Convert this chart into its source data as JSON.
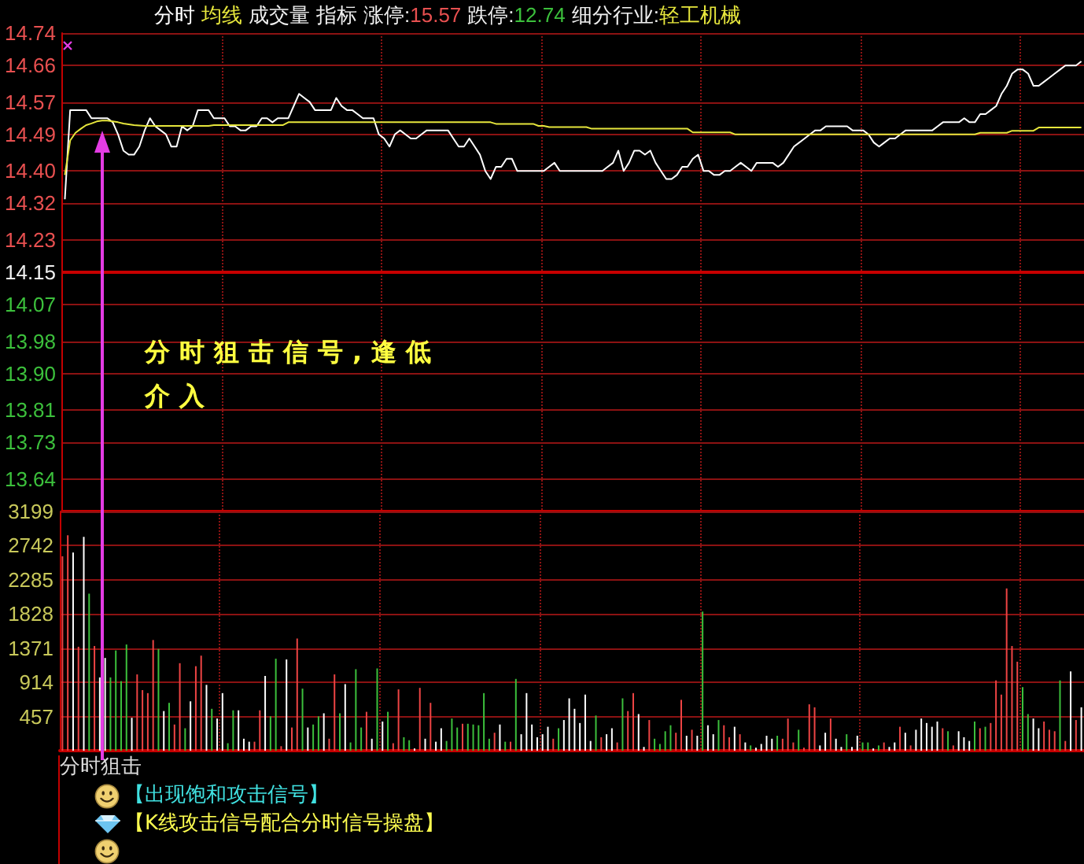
{
  "chart_data": [
    {
      "type": "line",
      "legend": "top left",
      "grid": true,
      "tick_labels": "y",
      "categories": [
        null,
        null,
        null,
        null,
        null,
        null,
        null,
        null,
        null,
        null,
        null,
        null,
        null,
        null,
        null,
        null,
        null,
        null,
        null,
        null,
        null,
        null,
        null,
        null,
        null,
        null,
        null,
        null,
        null,
        null,
        null,
        null,
        null,
        null,
        null,
        null,
        null,
        null,
        null,
        null,
        null,
        null,
        null,
        null,
        null,
        null,
        null,
        null,
        null,
        null,
        null,
        null,
        null,
        null,
        null,
        null,
        null,
        null,
        null,
        null,
        null,
        null,
        null,
        null,
        null,
        null,
        null,
        null,
        null,
        null,
        null,
        null,
        null,
        null,
        null,
        null,
        null,
        null,
        null,
        null,
        null,
        null,
        null,
        null,
        null,
        null,
        null,
        null,
        null,
        null,
        null,
        null,
        null,
        null,
        null,
        null,
        null,
        null,
        null,
        null,
        null,
        null,
        null,
        null,
        null,
        null,
        null,
        null,
        null,
        null,
        null,
        null,
        null,
        null,
        null,
        null,
        null,
        null,
        null,
        null,
        null,
        null,
        null,
        null,
        null,
        null,
        null,
        null,
        null,
        null,
        null,
        null,
        null,
        null,
        null,
        null,
        null,
        null,
        null,
        null,
        null,
        null,
        null,
        null,
        null,
        null,
        null,
        null,
        null,
        null,
        null,
        null,
        null,
        null,
        null,
        null,
        null,
        null,
        null,
        null,
        null,
        null,
        null,
        null,
        null,
        null,
        null,
        null,
        null,
        null,
        null,
        null,
        null,
        null,
        null,
        null,
        null,
        null,
        null,
        null,
        null,
        null,
        null,
        null,
        null,
        null,
        null,
        null,
        null,
        null,
        null,
        null
      ],
      "series": [
        {
          "name": "分时",
          "color": "#ffffff",
          "values": [
            14.33,
            14.55,
            14.55,
            14.55,
            14.55,
            14.53,
            14.53,
            14.53,
            14.53,
            14.52,
            14.49,
            14.45,
            14.44,
            14.44,
            14.46,
            14.5,
            14.53,
            14.51,
            14.5,
            14.49,
            14.46,
            14.46,
            14.51,
            14.5,
            14.51,
            14.55,
            14.55,
            14.55,
            14.53,
            14.53,
            14.53,
            14.51,
            14.51,
            14.5,
            14.5,
            14.51,
            14.51,
            14.53,
            14.53,
            14.52,
            14.53,
            14.53,
            14.53,
            14.56,
            14.59,
            14.58,
            14.57,
            14.55,
            14.55,
            14.55,
            14.55,
            14.58,
            14.56,
            14.55,
            14.55,
            14.54,
            14.53,
            14.53,
            14.53,
            14.49,
            14.48,
            14.46,
            14.49,
            14.5,
            14.49,
            14.48,
            14.48,
            14.49,
            14.5,
            14.5,
            14.5,
            14.5,
            14.5,
            14.48,
            14.46,
            14.46,
            14.48,
            14.46,
            14.44,
            14.4,
            14.38,
            14.41,
            14.41,
            14.43,
            14.43,
            14.4,
            14.4,
            14.4,
            14.4,
            14.4,
            14.4,
            14.41,
            14.42,
            14.4,
            14.4,
            14.4,
            14.4,
            14.4,
            14.4,
            14.4,
            14.4,
            14.4,
            14.41,
            14.42,
            14.45,
            14.4,
            14.42,
            14.45,
            14.45,
            14.44,
            14.45,
            14.42,
            14.4,
            14.38,
            14.38,
            14.39,
            14.41,
            14.41,
            14.43,
            14.44,
            14.4,
            14.4,
            14.39,
            14.39,
            14.4,
            14.4,
            14.41,
            14.42,
            14.41,
            14.4,
            14.42,
            14.42,
            14.42,
            14.42,
            14.41,
            14.42,
            14.44,
            14.46,
            14.47,
            14.48,
            14.49,
            14.5,
            14.5,
            14.51,
            14.51,
            14.51,
            14.51,
            14.51,
            14.5,
            14.5,
            14.5,
            14.49,
            14.47,
            14.46,
            14.47,
            14.48,
            14.48,
            14.49,
            14.5,
            14.5,
            14.5,
            14.5,
            14.5,
            14.5,
            14.51,
            14.52,
            14.52,
            14.52,
            14.52,
            14.53,
            14.52,
            14.52,
            14.54,
            14.54,
            14.55,
            14.56,
            14.59,
            14.61,
            14.64,
            14.65,
            14.65,
            14.64,
            14.61,
            14.61,
            14.62,
            14.63,
            14.64,
            14.65,
            14.66,
            14.66,
            14.66,
            14.67
          ]
        },
        {
          "name": "均线",
          "color": "#e6e63c",
          "values": [
            14.39,
            14.475,
            14.494,
            14.504,
            14.513,
            14.517,
            14.522,
            14.524,
            14.524,
            14.522,
            14.52,
            14.517,
            14.515,
            14.513,
            14.512,
            14.511,
            14.511,
            14.511,
            14.511,
            14.511,
            14.511,
            14.511,
            14.511,
            14.511,
            14.511,
            14.511,
            14.511,
            14.511,
            14.513,
            14.513,
            14.513,
            14.513,
            14.513,
            14.513,
            14.513,
            14.513,
            14.513,
            14.513,
            14.513,
            14.513,
            14.513,
            14.513,
            14.52,
            14.52,
            14.52,
            14.52,
            14.52,
            14.52,
            14.52,
            14.52,
            14.52,
            14.52,
            14.52,
            14.52,
            14.52,
            14.52,
            14.52,
            14.52,
            14.52,
            14.52,
            14.52,
            14.52,
            14.52,
            14.52,
            14.52,
            14.52,
            14.52,
            14.52,
            14.52,
            14.52,
            14.52,
            14.52,
            14.52,
            14.52,
            14.52,
            14.52,
            14.52,
            14.52,
            14.52,
            14.52,
            14.52,
            14.516,
            14.516,
            14.516,
            14.516,
            14.516,
            14.516,
            14.516,
            14.516,
            14.511,
            14.511,
            14.508,
            14.508,
            14.508,
            14.508,
            14.508,
            14.508,
            14.508,
            14.508,
            14.504,
            14.504,
            14.504,
            14.504,
            14.504,
            14.504,
            14.504,
            14.504,
            14.504,
            14.504,
            14.504,
            14.504,
            14.504,
            14.504,
            14.504,
            14.504,
            14.504,
            14.504,
            14.504,
            14.495,
            14.495,
            14.495,
            14.495,
            14.495,
            14.495,
            14.495,
            14.495,
            14.49,
            14.49,
            14.49,
            14.49,
            14.49,
            14.49,
            14.49,
            14.49,
            14.49,
            14.49,
            14.49,
            14.49,
            14.49,
            14.49,
            14.49,
            14.49,
            14.49,
            14.49,
            14.49,
            14.49,
            14.49,
            14.49,
            14.49,
            14.49,
            14.49,
            14.49,
            14.49,
            14.49,
            14.49,
            14.49,
            14.49,
            14.49,
            14.49,
            14.49,
            14.49,
            14.49,
            14.49,
            14.49,
            14.49,
            14.49,
            14.49,
            14.49,
            14.49,
            14.49,
            14.49,
            14.49,
            14.494,
            14.494,
            14.494,
            14.494,
            14.494,
            14.494,
            14.499,
            14.499,
            14.499,
            14.499,
            14.499,
            14.507,
            14.507,
            14.507,
            14.507,
            14.507,
            14.507,
            14.507,
            14.507,
            14.507
          ]
        }
      ],
      "ylim": [
        13.56,
        14.74
      ],
      "yticks": [
        13.64,
        13.73,
        13.81,
        {
          "value": 13.9,
          "label": "13.90"
        },
        13.98,
        14.07,
        14.15,
        14.23,
        14.32,
        {
          "value": 14.4,
          "label": "14.40"
        },
        14.49,
        14.57,
        14.66,
        14.74
      ],
      "ref_lines": [
        {
          "axis": "y",
          "value": 14.15,
          "color": "#c80000"
        }
      ],
      "annotations": [
        "成交量",
        "指标",
        "涨停:15.57",
        "跌停:12.74",
        "细分行业:轻工机械",
        "分时狙击信号,逢低介入"
      ]
    },
    {
      "type": "bar",
      "grid": true,
      "tick_labels": "y",
      "categories": [
        null,
        null,
        null,
        null,
        null,
        null,
        null,
        null,
        null,
        null,
        null,
        null,
        null,
        null,
        null,
        null,
        null,
        null,
        null,
        null,
        null,
        null,
        null,
        null,
        null,
        null,
        null,
        null,
        null,
        null,
        null,
        null,
        null,
        null,
        null,
        null,
        null,
        null,
        null,
        null,
        null,
        null,
        null,
        null,
        null,
        null,
        null,
        null,
        null,
        null,
        null,
        null,
        null,
        null,
        null,
        null,
        null,
        null,
        null,
        null,
        null,
        null,
        null,
        null,
        null,
        null,
        null,
        null,
        null,
        null,
        null,
        null,
        null,
        null,
        null,
        null,
        null,
        null,
        null,
        null,
        null,
        null,
        null,
        null,
        null,
        null,
        null,
        null,
        null,
        null,
        null,
        null,
        null,
        null,
        null,
        null,
        null,
        null,
        null,
        null,
        null,
        null,
        null,
        null,
        null,
        null,
        null,
        null,
        null,
        null,
        null,
        null,
        null,
        null,
        null,
        null,
        null,
        null,
        null,
        null,
        null,
        null,
        null,
        null,
        null,
        null,
        null,
        null,
        null,
        null,
        null,
        null,
        null,
        null,
        null,
        null,
        null,
        null,
        null,
        null,
        null,
        null,
        null,
        null,
        null,
        null,
        null,
        null,
        null,
        null,
        null,
        null,
        null,
        null,
        null,
        null,
        null,
        null,
        null,
        null,
        null,
        null,
        null,
        null,
        null,
        null,
        null,
        null,
        null,
        null,
        null,
        null,
        null,
        null,
        null,
        null,
        null,
        null,
        null,
        null,
        null,
        null,
        null,
        null,
        null,
        null,
        null,
        null,
        null,
        null,
        null,
        null
      ],
      "values": [
        2600,
        2880,
        2650,
        1390,
        2860,
        2100,
        1400,
        980,
        1240,
        980,
        1340,
        930,
        1420,
        440,
        1020,
        810,
        770,
        1480,
        1360,
        530,
        640,
        350,
        1170,
        300,
        660,
        1130,
        1270,
        880,
        560,
        430,
        770,
        100,
        540,
        540,
        160,
        120,
        120,
        540,
        1000,
        460,
        1230,
        60,
        1220,
        310,
        1500,
        830,
        310,
        350,
        460,
        500,
        160,
        1020,
        500,
        890,
        110,
        1090,
        310,
        520,
        160,
        1100,
        390,
        520,
        100,
        820,
        180,
        140,
        30,
        840,
        160,
        640,
        120,
        300,
        130,
        430,
        310,
        360,
        360,
        350,
        340,
        770,
        160,
        240,
        350,
        120,
        120,
        960,
        220,
        770,
        350,
        180,
        220,
        320,
        160,
        300,
        410,
        700,
        560,
        370,
        750,
        130,
        470,
        180,
        220,
        300,
        110,
        700,
        530,
        770,
        490,
        50,
        410,
        160,
        90,
        260,
        340,
        240,
        680,
        200,
        280,
        200,
        1860,
        340,
        220,
        410,
        340,
        180,
        320,
        220,
        110,
        70,
        40,
        90,
        200,
        160,
        200,
        160,
        430,
        110,
        280,
        40,
        620,
        580,
        70,
        240,
        430,
        160,
        50,
        220,
        50,
        200,
        110,
        110,
        30,
        70,
        110,
        50,
        110,
        320,
        240,
        70,
        280,
        430,
        370,
        320,
        390,
        300,
        260,
        70,
        260,
        180,
        130,
        390,
        300,
        320,
        370,
        940,
        750,
        2170,
        1400,
        1190,
        850,
        490,
        430,
        300,
        390,
        280,
        260,
        940,
        130,
        1060,
        410,
        580
      ],
      "colors": [
        "#ee4444",
        "#ee4444",
        "#ffffff",
        "#ee4444",
        "#ffffff",
        "#3cc03c",
        "#ee4444",
        "#ffffff",
        "#ffffff",
        "#3cc03c",
        "#3cc03c",
        "#3cc03c",
        "#3cc03c",
        "#ffffff",
        "#ee4444",
        "#ee4444",
        "#ee4444",
        "#ee4444",
        "#3cc03c",
        "#ffffff",
        "#3cc03c",
        "#ee4444",
        "#ee4444",
        "#3cc03c",
        "#ffffff",
        "#ee4444",
        "#ee4444",
        "#ffffff",
        "#3cc03c",
        "#ffffff",
        "#ffffff",
        "#3cc03c",
        "#3cc03c",
        "#ffffff",
        "#ffffff",
        "#ffffff",
        "#ee4444",
        "#ee4444",
        "#ffffff",
        "#3cc03c",
        "#3cc03c",
        "#ee4444",
        "#ffffff",
        "#ee4444",
        "#ee4444",
        "#3cc03c",
        "#ffffff",
        "#3cc03c",
        "#3cc03c",
        "#ffffff",
        "#ee4444",
        "#ee4444",
        "#3cc03c",
        "#ffffff",
        "#3cc03c",
        "#3cc03c",
        "#3cc03c",
        "#ee4444",
        "#ffffff",
        "#3cc03c",
        "#ffffff",
        "#3cc03c",
        "#ee4444",
        "#ee4444",
        "#3cc03c",
        "#3cc03c",
        "#ffffff",
        "#ee4444",
        "#ffffff",
        "#ee4444",
        "#ffffff",
        "#ffffff",
        "#3cc03c",
        "#3cc03c",
        "#3cc03c",
        "#ee4444",
        "#3cc03c",
        "#3cc03c",
        "#3cc03c",
        "#3cc03c",
        "#3cc03c",
        "#ee4444",
        "#ffffff",
        "#3cc03c",
        "#ee4444",
        "#3cc03c",
        "#ffffff",
        "#ffffff",
        "#ffffff",
        "#ffffff",
        "#ffffff",
        "#ffffff",
        "#ee4444",
        "#3cc03c",
        "#ffffff",
        "#ffffff",
        "#ffffff",
        "#ffffff",
        "#ffffff",
        "#ffffff",
        "#3cc03c",
        "#ee4444",
        "#ffffff",
        "#ffffff",
        "#ee4444",
        "#3cc03c",
        "#ee4444",
        "#ee4444",
        "#ffffff",
        "#ffffff",
        "#ee4444",
        "#3cc03c",
        "#3cc03c",
        "#3cc03c",
        "#3cc03c",
        "#ee4444",
        "#ee4444",
        "#ffffff",
        "#ee4444",
        "#ffffff",
        "#3cc03c",
        "#ffffff",
        "#ffffff",
        "#3cc03c",
        "#ee4444",
        "#ee4444",
        "#ffffff",
        "#ee4444",
        "#ffffff",
        "#3cc03c",
        "#ffffff",
        "#ffffff",
        "#ffffff",
        "#ffffff",
        "#3cc03c",
        "#ee4444",
        "#ee4444",
        "#ee4444",
        "#3cc03c",
        "#ee4444",
        "#ee4444",
        "#ee4444",
        "#ffffff",
        "#ffffff",
        "#ee4444",
        "#ffffff",
        "#ffffff",
        "#3cc03c",
        "#ffffff",
        "#ffffff",
        "#3cc03c",
        "#3cc03c",
        "#ffffff",
        "#3cc03c",
        "#ee4444",
        "#ffffff",
        "#ffffff",
        "#ee4444",
        "#ffffff",
        "#ee4444",
        "#ffffff",
        "#ffffff",
        "#ffffff",
        "#ffffff",
        "#ffffff",
        "#ee4444",
        "#3cc03c",
        "#ee4444",
        "#ffffff",
        "#ffffff",
        "#ffffff",
        "#3cc03c",
        "#ee4444",
        "#3cc03c",
        "#ee4444",
        "#ee4444",
        "#ee4444",
        "#ee4444",
        "#ee4444",
        "#ee4444",
        "#3cc03c",
        "#3cc03c",
        "#ffffff",
        "#ffffff",
        "#ee4444",
        "#ee4444",
        "#ee4444",
        "#3cc03c",
        "#ee4444",
        "#ffffff",
        "#ee4444",
        "#ffffff"
      ],
      "ylim": [
        0,
        3199
      ],
      "yticks": [
        457,
        914,
        1371,
        1828,
        2285,
        2742,
        3199
      ]
    },
    {
      "type": "other",
      "title": "分时狙击",
      "annotations": [
        "【出现饱和攻击信号】",
        "【K线攻击信号配合分时信号操盘】"
      ]
    }
  ]
}
